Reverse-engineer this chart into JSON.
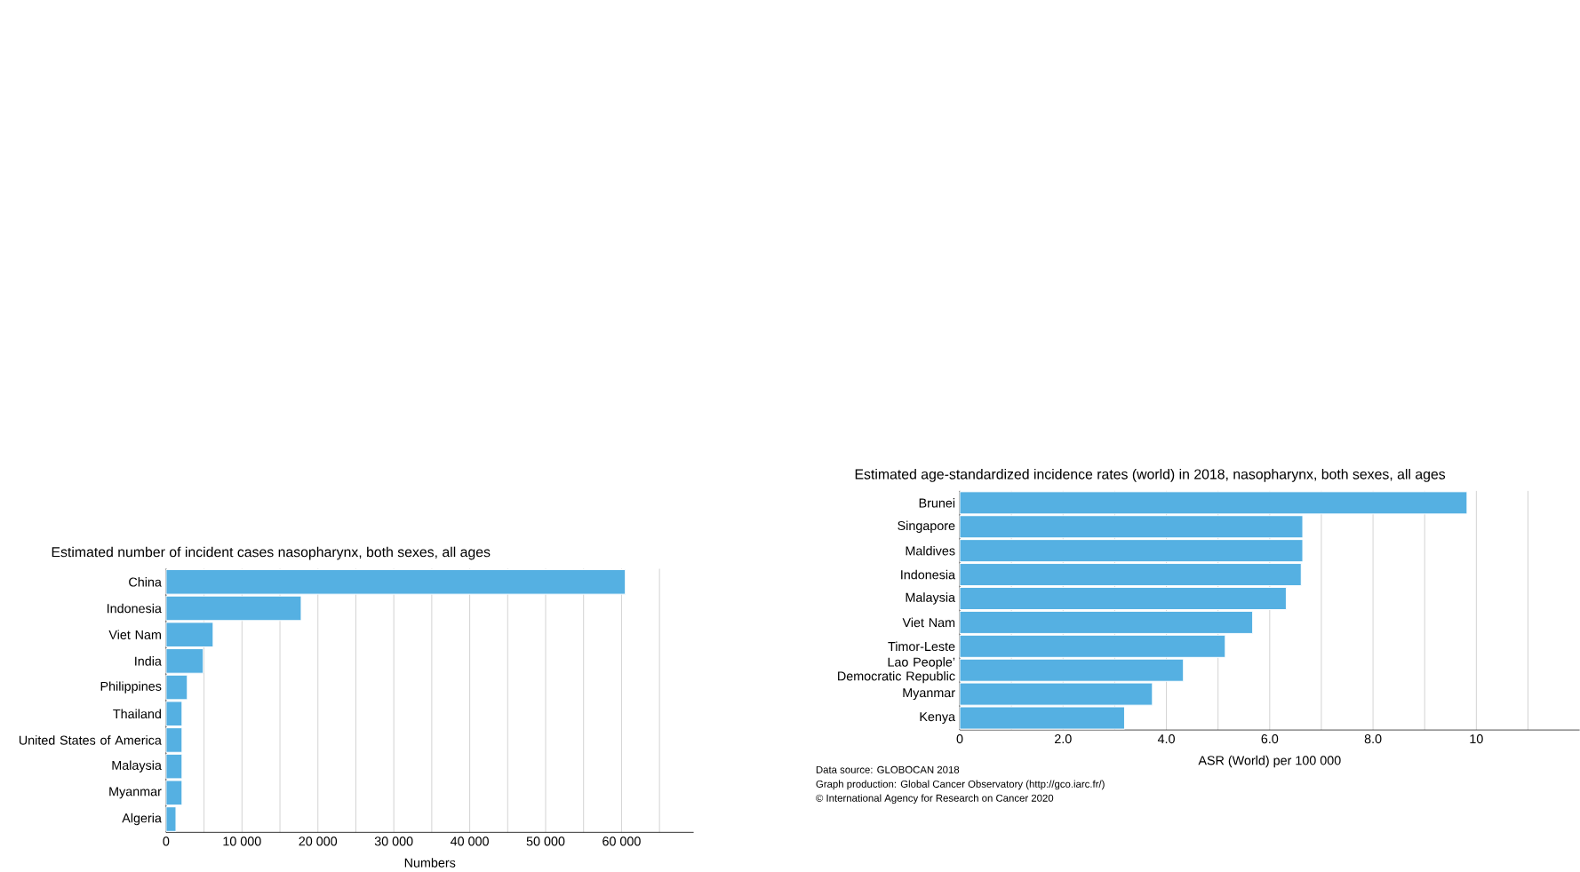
{
  "chart_data": [
    {
      "type": "bar",
      "orientation": "horizontal",
      "title": "Estimated number of incident cases nasopharynx, both sexes, all ages",
      "xlabel": "Numbers",
      "categories": [
        "China",
        "Indonesia",
        "Viet Nam",
        "India",
        "Philippines",
        "Thailand",
        "United States of America",
        "Malaysia",
        "Myanmar",
        "Algeria"
      ],
      "values": [
        60500,
        17800,
        6200,
        4900,
        2800,
        2100,
        2100,
        2100,
        2100,
        1300
      ],
      "color": "#55b0e2",
      "xlim": [
        0,
        69500
      ],
      "xticks": [
        0,
        {
          "value": 5000,
          "label": null
        },
        {
          "value": 10000,
          "label": "10 000"
        },
        {
          "value": 15000,
          "label": null
        },
        {
          "value": 20000,
          "label": "20 000"
        },
        {
          "value": 25000,
          "label": null
        },
        {
          "value": 30000,
          "label": "30 000"
        },
        {
          "value": 35000,
          "label": null
        },
        {
          "value": 40000,
          "label": "40 000"
        },
        {
          "value": 45000,
          "label": null
        },
        {
          "value": 50000,
          "label": "50 000"
        },
        {
          "value": 55000,
          "label": null
        },
        {
          "value": 60000,
          "label": "60 000"
        },
        {
          "value": 65000,
          "label": null
        }
      ],
      "grid": "x"
    },
    {
      "type": "bar",
      "orientation": "horizontal",
      "title": "Estimated age-standardized incidence rates (world) in 2018, nasopharynx, both sexes, all ages",
      "xlabel": "ASR (World) per 100 000",
      "categories": [
        "Brunei",
        "Singapore",
        "Maldives",
        "Indonesia",
        "Malaysia",
        "Viet Nam",
        "Timor-Leste",
        "Lao People’ Democratic Republic",
        "Myanmar",
        "Kenya"
      ],
      "values": [
        9.82,
        6.64,
        6.64,
        6.61,
        6.32,
        5.67,
        5.14,
        4.33,
        3.73,
        3.19
      ],
      "color": "#55b0e2",
      "xlim": [
        0,
        12
      ],
      "xticks": [
        0,
        {
          "value": 1,
          "label": null
        },
        {
          "value": 2,
          "label": "2.0"
        },
        {
          "value": 3,
          "label": null
        },
        {
          "value": 4,
          "label": "4.0"
        },
        {
          "value": 5,
          "label": null
        },
        {
          "value": 6,
          "label": "6.0"
        },
        {
          "value": 7,
          "label": null
        },
        {
          "value": 8,
          "label": "8.0"
        },
        {
          "value": 9,
          "label": null
        },
        {
          "value": 10,
          "label": "10"
        },
        {
          "value": 11,
          "label": null
        }
      ],
      "grid": "x",
      "annotations": [
        "Data source: GLOBOCAN 2018",
        "Graph production: Global Cancer Observatory (http://gco.iarc.fr/)",
        "© International Agency for Research on Cancer 2020"
      ]
    }
  ]
}
